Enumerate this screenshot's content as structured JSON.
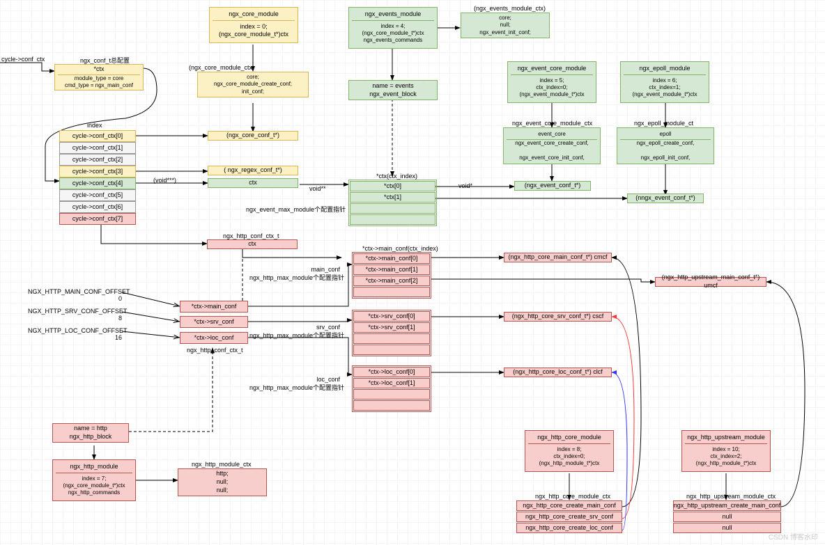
{
  "colors": {
    "yellow_fill": "#fcf1c5",
    "yellow_border": "#d6b656",
    "green_fill": "#d5e8d4",
    "green_border": "#82b366",
    "pink_fill": "#f8cecc",
    "pink_border": "#b85450",
    "gray_fill": "#f5f5f5",
    "gray_border": "#666666",
    "red_line": "#ff3333",
    "blue_line": "#3333ff",
    "black": "#000000"
  },
  "nodes": {
    "ngx_conf_t": {
      "title": "",
      "body": "*ctx\nmodule_type = core\ncmd_type = ngx_main_conf",
      "label": "ngx_conf_t总配置"
    },
    "cycle_conf_ctx_label": "cycle->conf_ctx",
    "index_label": "index",
    "ctx_rows": [
      "cycle->conf_ctx[0]",
      "cycle->conf_ctx[1]",
      "cycle->conf_ctx[2]",
      "cycle->conf_ctx[3]",
      "cycle->conf_ctx[4]",
      "cycle->conf_ctx[5]",
      "cycle->conf_ctx[6]",
      "cycle->conf_ctx[7]"
    ],
    "core_module": {
      "title": "ngx_core_module",
      "body": "index = 0;\n(ngx_core_module_t*)ctx"
    },
    "core_module_ctx_label": "(ngx_core_module_ctx)",
    "core_module_ctx": {
      "body": "core;\nngx_core_module_create_conf;\ninit_conf;"
    },
    "ngx_core_conf_t": "(ngx_core_conf_t*)",
    "ngx_regex_conf_t": "( ngx_regex_conf_t*)",
    "ctx_box": "ctx",
    "void_star": "(void***)",
    "void_ss": "void**",
    "void_s": "void*",
    "events_module": {
      "title": "ngx_events_module",
      "body": "index = 4;\n(ngx_core_module_t*)ctx\nngx_events_commands"
    },
    "events_module_ctx_label": "(ngx_events_module_ctx)",
    "events_module_ctx": {
      "body": "core;\nnull;\nngx_event_init_conf;"
    },
    "events_block": {
      "body": "name = events\nngx_event_block"
    },
    "ctx_array_label": "*ctx(ctx_index)",
    "ctx_array": [
      "*ctx[0]",
      "*ctx[1]"
    ],
    "max_module_label": "ngx_event_max_module个配置指针",
    "event_core_module": {
      "title": "ngx_event_core_module",
      "body": "index = 5;\nctx_index=0;\n(ngx_event_module_t*)ctx"
    },
    "event_core_ctx_label": "ngx_event_core_module_ctx",
    "event_core_ctx": {
      "title": "event_core",
      "body": "ngx_event_core_create_conf,\n\nngx_event_core_init_conf,"
    },
    "ngx_event_conf_t": "(ngx_event_conf_t*)",
    "epoll_module": {
      "title": "ngx_epoll_module",
      "body": "index = 6;\nctx_index=1;\n(ngx_event_module_t*)ctx"
    },
    "epoll_ctx_label": "ngx_epoll_module_ct",
    "epoll_ctx": {
      "title": "epoll",
      "body": "ngx_epoll_create_conf,\n\nngx_epoll_init_conf,"
    },
    "nngx_event_conf_t": "(nngx_event_conf_t*)",
    "http_conf_ctx_label": "ngx_http_conf_ctx_t",
    "http_ctx": "ctx",
    "main_conf_label": "*ctx->main_conf(ctx_index)",
    "main_conf_sub": "main_conf\nngx_http_max_module个配置指针",
    "main_conf_arr": [
      "*ctx->main_conf[0]",
      "*ctx->main_conf[1]",
      "*ctx->main_conf[2]"
    ],
    "srv_conf_sub": "srv_conf\nngx_http_max_module个配置指针",
    "srv_conf_arr": [
      "*ctx->srv_conf[0]",
      "*ctx->srv_conf[1]"
    ],
    "loc_conf_sub": "loc_conf\nngx_http_max_module个配置指针",
    "loc_conf_arr": [
      "*ctx->loc_conf[0]",
      "*ctx->loc_conf[1]"
    ],
    "ctx_main_conf": "*ctx->main_conf",
    "ctx_srv_conf": "*ctx->srv_conf",
    "ctx_loc_conf": "*ctx->loc_conf",
    "http_conf_ctx_t2": "ngx_http_conf_ctx_t",
    "cmcf": "(ngx_http_core_main_conf_t*) cmcf",
    "umcf": "(ngx_http_upstream_main_conf_t*) umcf",
    "cscf": "(ngx_http_core_srv_conf_t*) cscf",
    "clcf": "(ngx_http_core_loc_conf_t*) clcf",
    "offset_main": "NGX_HTTP_MAIN_CONF_OFFSET\n0",
    "offset_srv": "NGX_HTTP_SRV_CONF_OFFSET\n8",
    "offset_loc": "NGX_HTTP_LOC_CONF_OFFSET\n16",
    "http_block": {
      "body": "name = http\nngx_http_block"
    },
    "http_module": {
      "title": "ngx_http_module",
      "body": "index = 7;\n(ngx_core_module_t*)ctx\nngx_http_commands"
    },
    "http_module_ctx_label": "ngx_http_module_ctx",
    "http_module_ctx": {
      "body": "http;\nnull;\nnull;"
    },
    "http_core_module": {
      "title": "ngx_http_core_module",
      "body": "index = 8;\nctx_index=0;\n(ngx_http_module_t*)ctx"
    },
    "http_core_ctx_label": "ngx_http_core_module_ctx",
    "http_core_ctx": [
      "ngx_http_core_create_main_conf",
      "ngx_http_core_create_srv_conf",
      "ngx_http_core_create_loc_conf"
    ],
    "http_upstream_module": {
      "title": "ngx_http_upstream_module",
      "body": "index = 10;\nctx_index=2;\n(ngx_http_module_t*)ctx"
    },
    "http_upstream_ctx_label": "ngx_http_upstream_module_ctx",
    "http_upstream_ctx": [
      "ngx_http_upstream_create_main_conf",
      "null",
      "null"
    ]
  }
}
